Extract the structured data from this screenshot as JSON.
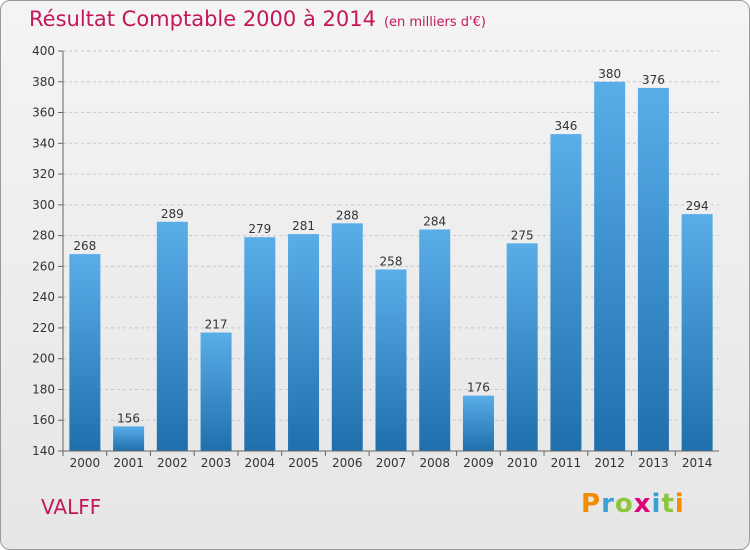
{
  "title": "Résultat Comptable 2000 à 2014",
  "subtitle": "(en milliers d'€)",
  "commune": "VALFF",
  "logo": {
    "letters": [
      "P",
      "r",
      "o",
      "x",
      "i",
      "t",
      "i"
    ],
    "colors": [
      "#f28c00",
      "#3aa0d8",
      "#8cc63f",
      "#e2007a",
      "#3aa0d8",
      "#8cc63f",
      "#f28c00"
    ]
  },
  "colors": {
    "bar_top": "#5aaee8",
    "bar_bottom": "#1f6fad",
    "title": "#c2185b"
  },
  "chart_data": {
    "type": "bar",
    "categories": [
      "2000",
      "2001",
      "2002",
      "2003",
      "2004",
      "2005",
      "2006",
      "2007",
      "2008",
      "2009",
      "2010",
      "2011",
      "2012",
      "2013",
      "2014"
    ],
    "values": [
      268,
      156,
      289,
      217,
      279,
      281,
      288,
      258,
      284,
      176,
      275,
      346,
      380,
      376,
      294
    ],
    "ylim": [
      140,
      400
    ],
    "yticks": [
      140,
      160,
      180,
      200,
      220,
      240,
      260,
      280,
      300,
      320,
      340,
      360,
      380,
      400
    ],
    "grid": true
  }
}
